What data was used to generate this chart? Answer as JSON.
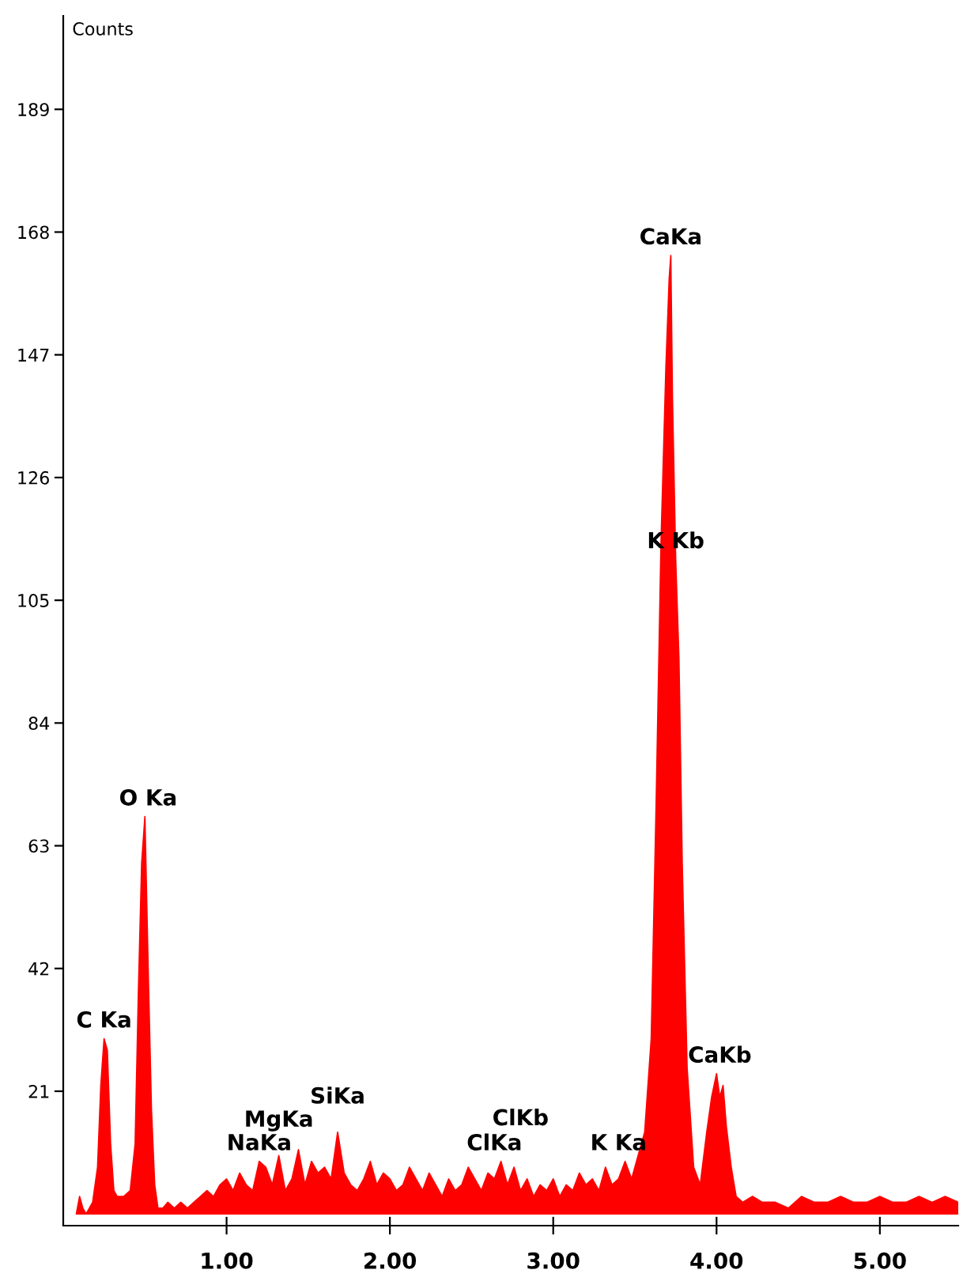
{
  "chart_data": {
    "type": "area",
    "ylabel": "Counts",
    "x": [
      0.08,
      0.1,
      0.12,
      0.14,
      0.18,
      0.21,
      0.23,
      0.25,
      0.27,
      0.29,
      0.31,
      0.33,
      0.37,
      0.41,
      0.44,
      0.46,
      0.48,
      0.5,
      0.52,
      0.54,
      0.56,
      0.58,
      0.61,
      0.64,
      0.68,
      0.72,
      0.76,
      0.8,
      0.84,
      0.88,
      0.92,
      0.96,
      1.0,
      1.04,
      1.08,
      1.12,
      1.16,
      1.2,
      1.24,
      1.28,
      1.32,
      1.36,
      1.4,
      1.44,
      1.48,
      1.52,
      1.56,
      1.6,
      1.64,
      1.68,
      1.72,
      1.76,
      1.8,
      1.84,
      1.88,
      1.92,
      1.96,
      2.0,
      2.04,
      2.08,
      2.12,
      2.16,
      2.2,
      2.24,
      2.28,
      2.32,
      2.36,
      2.4,
      2.44,
      2.48,
      2.52,
      2.56,
      2.6,
      2.64,
      2.68,
      2.72,
      2.76,
      2.8,
      2.84,
      2.88,
      2.92,
      2.96,
      3.0,
      3.04,
      3.08,
      3.12,
      3.16,
      3.2,
      3.24,
      3.28,
      3.32,
      3.36,
      3.4,
      3.44,
      3.48,
      3.52,
      3.56,
      3.6,
      3.63,
      3.66,
      3.69,
      3.71,
      3.72,
      3.73,
      3.75,
      3.77,
      3.79,
      3.82,
      3.86,
      3.9,
      3.94,
      3.97,
      4.0,
      4.02,
      4.04,
      4.06,
      4.09,
      4.12,
      4.16,
      4.22,
      4.28,
      4.36,
      4.44,
      4.52,
      4.6,
      4.68,
      4.76,
      4.84,
      4.92,
      5.0,
      5.08,
      5.16,
      5.24,
      5.32,
      5.4,
      5.48
    ],
    "series": [
      {
        "color": "#ff0000",
        "values": [
          0,
          3,
          1,
          0,
          2,
          8,
          22,
          30,
          28,
          12,
          4,
          3,
          3,
          4,
          12,
          38,
          60,
          68,
          42,
          18,
          5,
          1,
          1,
          2,
          1,
          2,
          1,
          2,
          3,
          4,
          3,
          5,
          6,
          4,
          7,
          5,
          4,
          9,
          8,
          5,
          10,
          4,
          6,
          11,
          5,
          9,
          7,
          8,
          6,
          14,
          7,
          5,
          4,
          6,
          9,
          5,
          7,
          6,
          4,
          5,
          8,
          6,
          4,
          7,
          5,
          3,
          6,
          4,
          5,
          8,
          6,
          4,
          7,
          6,
          9,
          5,
          8,
          4,
          6,
          3,
          5,
          4,
          6,
          3,
          5,
          4,
          7,
          5,
          6,
          4,
          8,
          5,
          6,
          9,
          6,
          10,
          14,
          30,
          70,
          115,
          145,
          160,
          164,
          140,
          112,
          95,
          60,
          25,
          8,
          5,
          14,
          20,
          24,
          20,
          22,
          15,
          8,
          3,
          2,
          3,
          2,
          2,
          1,
          3,
          2,
          2,
          3,
          2,
          2,
          3,
          2,
          2,
          3,
          2,
          3,
          2
        ]
      }
    ],
    "xlim": [
      0,
      5.48
    ],
    "ylim": [
      -2,
      205
    ],
    "xticks": [
      {
        "value": 1,
        "label": "1.00"
      },
      {
        "value": 2,
        "label": "2.00"
      },
      {
        "value": 3,
        "label": "3.00"
      },
      {
        "value": 4,
        "label": "4.00"
      },
      {
        "value": 5,
        "label": "5.00"
      }
    ],
    "yticks": [
      21,
      42,
      63,
      84,
      105,
      126,
      147,
      168,
      189
    ],
    "annotations": [
      {
        "text": "C Ka",
        "x": 0.25,
        "y": 30
      },
      {
        "text": "O Ka",
        "x": 0.52,
        "y": 68
      },
      {
        "text": "NaKa",
        "x": 1.2,
        "y": 9
      },
      {
        "text": "MgKa",
        "x": 1.32,
        "y": 10
      },
      {
        "text": "SiKa",
        "x": 1.68,
        "y": 14
      },
      {
        "text": "ClKa",
        "x": 2.64,
        "y": 9
      },
      {
        "text": "ClKb",
        "x": 2.8,
        "y": 8
      },
      {
        "text": "K Ka",
        "x": 3.4,
        "y": 9
      },
      {
        "text": "CaKa",
        "x": 3.72,
        "y": 164
      },
      {
        "text": "K Kb",
        "x": 3.75,
        "y": 112
      },
      {
        "text": "CaKb",
        "x": 4.02,
        "y": 24
      }
    ]
  }
}
